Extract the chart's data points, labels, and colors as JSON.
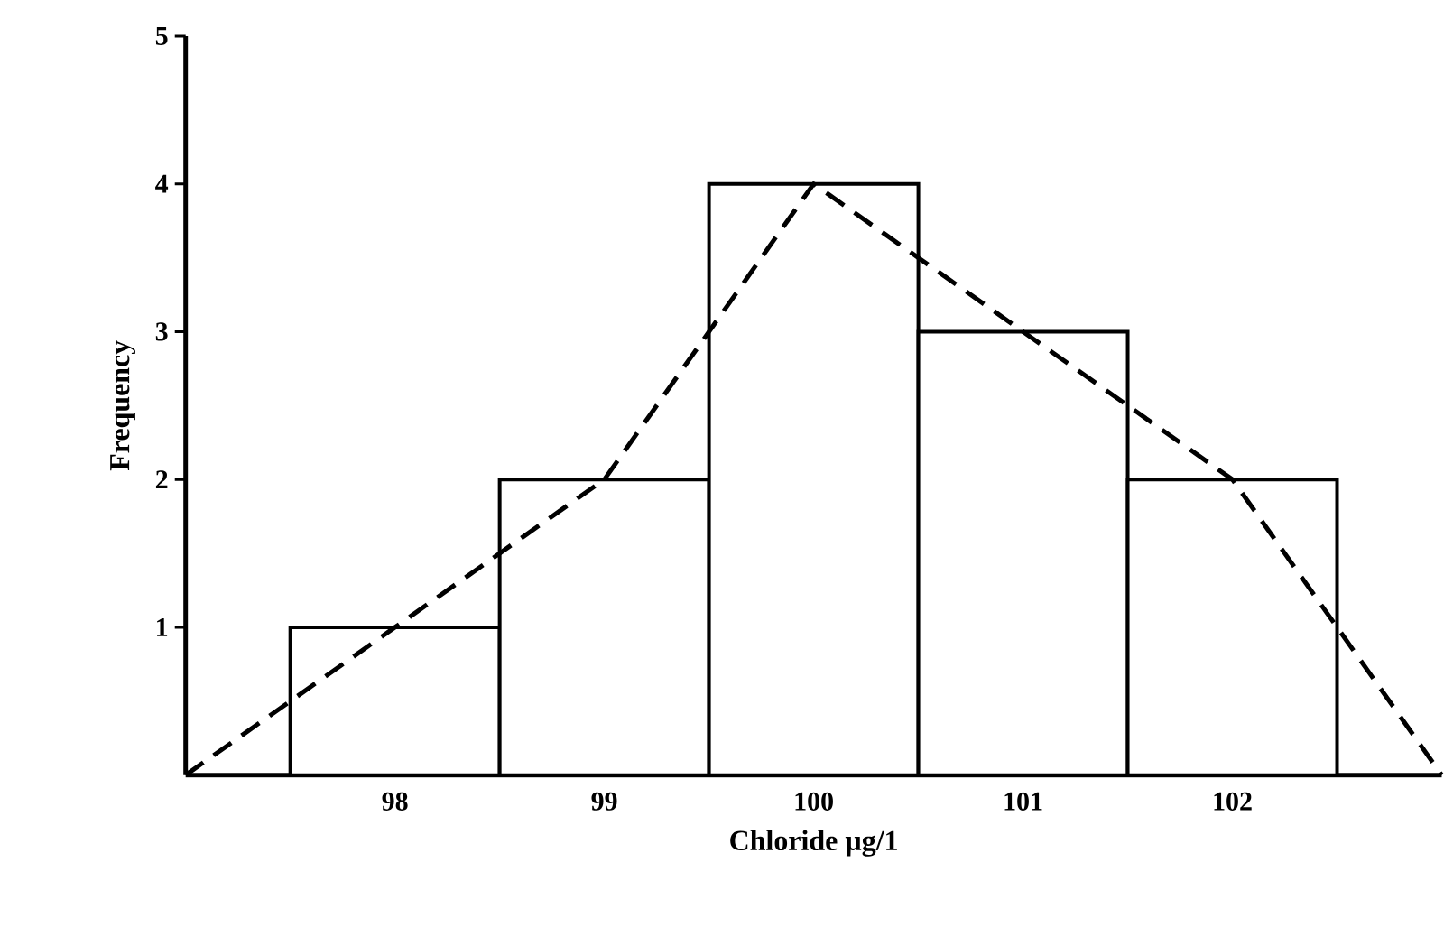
{
  "chart_data": {
    "type": "histogram",
    "xlabel": "Chloride µg/1",
    "ylabel": "Frequency",
    "bins": [
      97.5,
      98.5,
      99.5,
      100.5,
      101.5,
      102.5
    ],
    "values": [
      1,
      2,
      4,
      3,
      2
    ],
    "color": "#ffffff",
    "series": [
      {
        "type": "line",
        "x": [
          97,
          98,
          99,
          100,
          101,
          102,
          103
        ],
        "values": [
          0,
          1,
          2,
          4,
          3,
          2,
          0
        ],
        "color": "#000000",
        "line_style": "dashed"
      }
    ],
    "xlim": [
      97,
      103
    ],
    "ylim": [
      0,
      5
    ],
    "xticks": [
      98,
      99,
      100,
      101,
      102
    ],
    "yticks": [
      1,
      2,
      3,
      4,
      5
    ],
    "grid": false
  }
}
